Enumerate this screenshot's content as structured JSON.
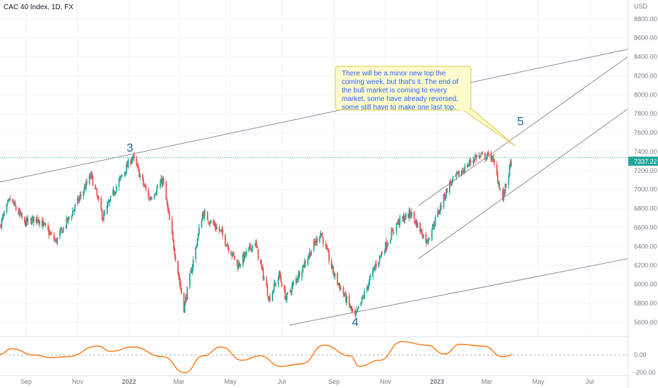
{
  "header": {
    "title": "CAC 40 Index, 1D, FX"
  },
  "price_axis": {
    "unit": "USD",
    "ticks": [
      5600,
      5800,
      6000,
      6200,
      6400,
      6600,
      6800,
      7000,
      7200,
      7400,
      7600,
      7800,
      8000,
      8200,
      8400,
      8600,
      8800
    ],
    "tick_labels": [
      "5600.00",
      "5800.00",
      "6000.00",
      "6200.00",
      "6400.00",
      "6600.00",
      "6800.00",
      "7000.00",
      "7200.00",
      "7400.00",
      "7600.00",
      "7800.00",
      "8000.00",
      "8200.00",
      "8400.00",
      "8600.00",
      "8800.00"
    ],
    "last_price": 7337.22,
    "last_price_label": "7337.22"
  },
  "osc_axis": {
    "tick_labels": [
      "0.00",
      "-200.00"
    ]
  },
  "time_axis": {
    "labels": [
      "Sep",
      "Nov",
      "2022",
      "Mar",
      "May",
      "Jul",
      "Sep",
      "Nov",
      "2023",
      "Mar",
      "May",
      "Jul"
    ]
  },
  "annotation": {
    "text_lines": [
      "There will be a minor new top the",
      "coming week, but that's it. The end of",
      "the bull market is coming to every",
      "market, some have already reversed,",
      "some still have to make one last top."
    ]
  },
  "wave_labels": [
    "3",
    "4",
    "5"
  ],
  "colors": {
    "up": "#26a69a",
    "down": "#ef5350",
    "oscillator": "#ff6d00",
    "text": "#131722",
    "axis_text": "#787b86",
    "grid": "#f0f3fa",
    "wave_label": "#2962a8",
    "trendline": "#787b86",
    "note_bg": "#fffbcc",
    "note_border": "#d9c84a",
    "note_text": "#2962ff",
    "last_price_bg": "#26a69a"
  },
  "chart_data": {
    "type": "candlestick",
    "title": "CAC 40 Index, 1D, FX",
    "y_unit": "USD",
    "ylim": [
      5450,
      9000
    ],
    "xlim": [
      "2021-08-01",
      "2023-08-15"
    ],
    "grid": true,
    "price_path": [
      [
        "2021-08-01",
        6620
      ],
      [
        "2021-08-13",
        6900
      ],
      [
        "2021-08-30",
        6650
      ],
      [
        "2021-09-15",
        6700
      ],
      [
        "2021-10-06",
        6450
      ],
      [
        "2021-10-25",
        6750
      ],
      [
        "2021-11-17",
        7150
      ],
      [
        "2021-12-01",
        6700
      ],
      [
        "2021-12-15",
        7000
      ],
      [
        "2022-01-05",
        7350
      ],
      [
        "2022-01-25",
        6900
      ],
      [
        "2022-02-10",
        7100
      ],
      [
        "2022-03-07",
        5750
      ],
      [
        "2022-03-29",
        6750
      ],
      [
        "2022-04-20",
        6550
      ],
      [
        "2022-05-10",
        6200
      ],
      [
        "2022-05-30",
        6450
      ],
      [
        "2022-06-16",
        5850
      ],
      [
        "2022-06-28",
        6100
      ],
      [
        "2022-07-06",
        5850
      ],
      [
        "2022-08-16",
        6550
      ],
      [
        "2022-09-01",
        6100
      ],
      [
        "2022-09-26",
        5650
      ],
      [
        "2022-10-20",
        6200
      ],
      [
        "2022-11-15",
        6650
      ],
      [
        "2022-12-01",
        6750
      ],
      [
        "2022-12-20",
        6450
      ],
      [
        "2023-01-15",
        7050
      ],
      [
        "2023-02-16",
        7350
      ],
      [
        "2023-03-07",
        7350
      ],
      [
        "2023-03-20",
        6900
      ],
      [
        "2023-03-31",
        7337.22
      ]
    ],
    "oscillator": {
      "name": "",
      "ylim": [
        -230,
        200
      ],
      "points": [
        [
          "2021-08-01",
          10
        ],
        [
          "2021-08-15",
          70
        ],
        [
          "2021-09-10",
          0
        ],
        [
          "2021-09-30",
          -30
        ],
        [
          "2021-10-20",
          -20
        ],
        [
          "2021-11-25",
          100
        ],
        [
          "2021-12-10",
          40
        ],
        [
          "2022-01-05",
          90
        ],
        [
          "2022-02-10",
          -20
        ],
        [
          "2022-03-08",
          -200
        ],
        [
          "2022-03-30",
          -10
        ],
        [
          "2022-04-20",
          90
        ],
        [
          "2022-05-15",
          -60
        ],
        [
          "2022-06-05",
          -10
        ],
        [
          "2022-06-30",
          -130
        ],
        [
          "2022-07-25",
          -100
        ],
        [
          "2022-08-20",
          110
        ],
        [
          "2022-09-20",
          -10
        ],
        [
          "2022-10-01",
          -130
        ],
        [
          "2022-10-25",
          -60
        ],
        [
          "2022-11-20",
          150
        ],
        [
          "2022-12-20",
          110
        ],
        [
          "2023-01-10",
          10
        ],
        [
          "2023-01-28",
          120
        ],
        [
          "2023-02-25",
          100
        ],
        [
          "2023-03-20",
          -20
        ],
        [
          "2023-03-31",
          0
        ]
      ]
    },
    "trendlines": [
      {
        "from": [
          "2021-08-01",
          7080
        ],
        "to": [
          "2023-08-15",
          8480
        ]
      },
      {
        "from": [
          "2022-07-10",
          5570
        ],
        "to": [
          "2023-08-15",
          6270
        ]
      },
      {
        "from": [
          "2022-12-10",
          6270
        ],
        "to": [
          "2023-08-15",
          7850
        ]
      },
      {
        "from": [
          "2022-12-10",
          6830
        ],
        "to": [
          "2023-08-15",
          8400
        ]
      }
    ],
    "waves": [
      {
        "label": "3",
        "date": "2022-01-02",
        "price": 7400
      },
      {
        "label": "4",
        "date": "2022-09-26",
        "price": 5560
      },
      {
        "label": "5",
        "date": "2023-04-10",
        "price": 7680
      }
    ]
  }
}
